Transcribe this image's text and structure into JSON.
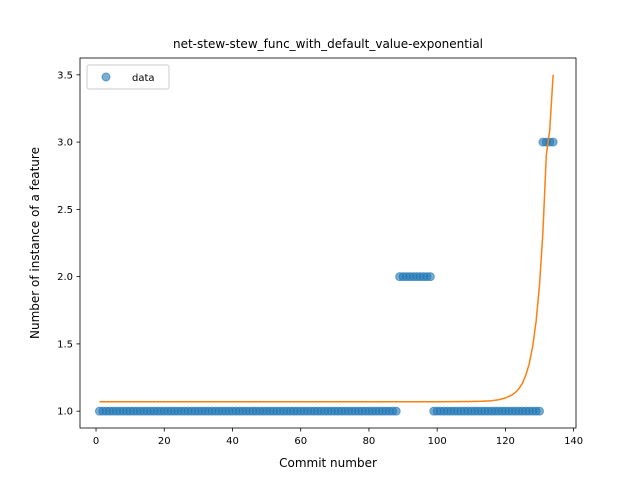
{
  "chart_data": {
    "type": "scatter",
    "title": "net-stew-stew_func_with_default_value-exponential",
    "xlabel": "Commit number",
    "ylabel": "Number of instance of a feature",
    "xlim": [
      -4.7,
      140.7
    ],
    "ylim": [
      0.875,
      3.625
    ],
    "xticks": [
      0,
      20,
      40,
      60,
      80,
      100,
      120,
      140
    ],
    "yticks": [
      1.0,
      1.5,
      2.0,
      2.5,
      3.0,
      3.5
    ],
    "xtick_labels": [
      "0",
      "20",
      "40",
      "60",
      "80",
      "100",
      "120",
      "140"
    ],
    "ytick_labels": [
      "1.0",
      "1.5",
      "2.0",
      "2.5",
      "3.0",
      "3.5"
    ],
    "legend": {
      "position": "upper-left",
      "entries": [
        "data"
      ]
    },
    "series": [
      {
        "name": "data",
        "kind": "scatter",
        "color": "#1f77b4",
        "alpha": 0.6,
        "x": [
          1,
          2,
          3,
          4,
          5,
          6,
          7,
          8,
          9,
          10,
          11,
          12,
          13,
          14,
          15,
          16,
          17,
          18,
          19,
          20,
          21,
          22,
          23,
          24,
          25,
          26,
          27,
          28,
          29,
          30,
          31,
          32,
          33,
          34,
          35,
          36,
          37,
          38,
          39,
          40,
          41,
          42,
          43,
          44,
          45,
          46,
          47,
          48,
          49,
          50,
          51,
          52,
          53,
          54,
          55,
          56,
          57,
          58,
          59,
          60,
          61,
          62,
          63,
          64,
          65,
          66,
          67,
          68,
          69,
          70,
          71,
          72,
          73,
          74,
          75,
          76,
          77,
          78,
          79,
          80,
          81,
          82,
          83,
          84,
          85,
          86,
          87,
          88,
          89,
          90,
          91,
          92,
          93,
          94,
          95,
          96,
          97,
          98,
          99,
          100,
          101,
          102,
          103,
          104,
          105,
          106,
          107,
          108,
          109,
          110,
          111,
          112,
          113,
          114,
          115,
          116,
          117,
          118,
          119,
          120,
          121,
          122,
          123,
          124,
          125,
          126,
          127,
          128,
          129,
          130,
          131,
          132,
          133,
          134
        ],
        "y": [
          1,
          1,
          1,
          1,
          1,
          1,
          1,
          1,
          1,
          1,
          1,
          1,
          1,
          1,
          1,
          1,
          1,
          1,
          1,
          1,
          1,
          1,
          1,
          1,
          1,
          1,
          1,
          1,
          1,
          1,
          1,
          1,
          1,
          1,
          1,
          1,
          1,
          1,
          1,
          1,
          1,
          1,
          1,
          1,
          1,
          1,
          1,
          1,
          1,
          1,
          1,
          1,
          1,
          1,
          1,
          1,
          1,
          1,
          1,
          1,
          1,
          1,
          1,
          1,
          1,
          1,
          1,
          1,
          1,
          1,
          1,
          1,
          1,
          1,
          1,
          1,
          1,
          1,
          1,
          1,
          1,
          1,
          1,
          1,
          1,
          1,
          1,
          1,
          2,
          2,
          2,
          2,
          2,
          2,
          2,
          2,
          2,
          2,
          1,
          1,
          1,
          1,
          1,
          1,
          1,
          1,
          1,
          1,
          1,
          1,
          1,
          1,
          1,
          1,
          1,
          1,
          1,
          1,
          1,
          1,
          1,
          1,
          1,
          1,
          1,
          1,
          1,
          1,
          1,
          1,
          3,
          3,
          3,
          3
        ]
      },
      {
        "kind": "line",
        "color": "#ff7f0e",
        "x": [
          1,
          10,
          20,
          30,
          40,
          50,
          60,
          70,
          80,
          90,
          100,
          105,
          110,
          113,
          116,
          118,
          120,
          122,
          123,
          124,
          125,
          126,
          127,
          128,
          129,
          130,
          131,
          132,
          133,
          134
        ],
        "y": [
          1.07,
          1.07,
          1.07,
          1.07,
          1.07,
          1.07,
          1.07,
          1.07,
          1.07,
          1.07,
          1.07,
          1.071,
          1.072,
          1.074,
          1.078,
          1.085,
          1.098,
          1.122,
          1.141,
          1.168,
          1.208,
          1.268,
          1.354,
          1.481,
          1.666,
          1.936,
          2.33,
          2.905,
          3.09,
          3.5
        ]
      }
    ]
  }
}
